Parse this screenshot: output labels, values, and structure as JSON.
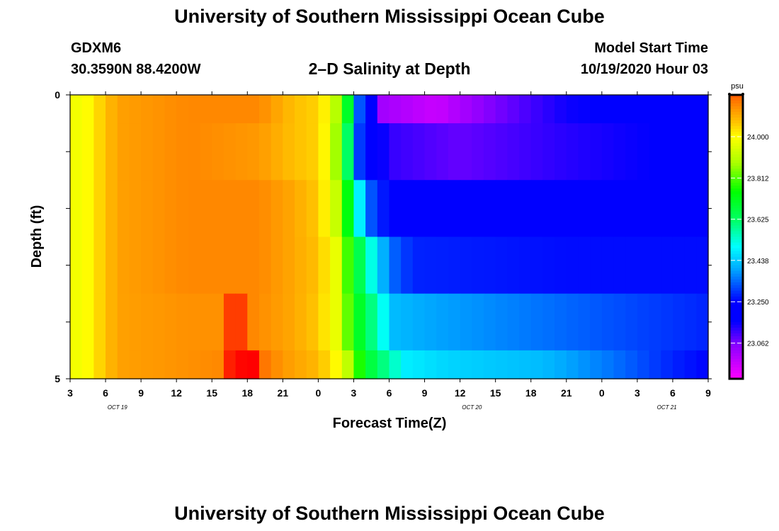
{
  "header": {
    "title": "University of Southern Mississippi Ocean Cube",
    "station": "GDXM6",
    "coords": "30.3590N 88.4200W",
    "plot_title": "2–D Salinity at Depth",
    "model_start_label": "Model Start Time",
    "model_start_value": "10/19/2020 Hour 03"
  },
  "footer": {
    "title": "University of Southern Mississippi Ocean Cube"
  },
  "chart_data": {
    "type": "heatmap",
    "title": "2–D Salinity at Depth",
    "xlabel": "Forecast Time(Z)",
    "ylabel": "Depth (ft)",
    "ylim": [
      0,
      5
    ],
    "y_tick_labels": [
      "0",
      "5"
    ],
    "x_tick_labels": [
      "3",
      "6",
      "9",
      "12",
      "15",
      "18",
      "21",
      "0",
      "3",
      "6",
      "9",
      "12",
      "15",
      "18",
      "21",
      "0",
      "3",
      "6",
      "9"
    ],
    "date_labels": [
      {
        "text": "OCT 19",
        "hour_index": 4
      },
      {
        "text": "OCT 20",
        "hour_index": 34
      },
      {
        "text": "OCT 21",
        "hour_index": 50.5
      }
    ],
    "forecast_hours": 54,
    "depth_layers": [
      0.5,
      1.5,
      2.5,
      3.5,
      4.5
    ],
    "layer_keys": [
      [
        [
          0,
          23.98
        ],
        [
          1.2,
          23.99
        ],
        [
          4,
          24.11
        ],
        [
          10,
          24.14
        ],
        [
          16,
          24.14
        ],
        [
          19,
          24.07
        ],
        [
          21,
          24.05
        ],
        [
          22,
          23.98
        ],
        [
          22.8,
          23.85
        ],
        [
          23.5,
          23.7
        ],
        [
          24.3,
          23.35
        ],
        [
          25.5,
          23.2
        ],
        [
          26.5,
          23.02
        ],
        [
          31,
          22.97
        ],
        [
          35,
          23.05
        ],
        [
          42,
          23.15
        ],
        [
          54,
          23.2
        ]
      ],
      [
        [
          0,
          23.98
        ],
        [
          1.2,
          23.99
        ],
        [
          4,
          24.11
        ],
        [
          10,
          24.14
        ],
        [
          16,
          24.12
        ],
        [
          19,
          24.07
        ],
        [
          21,
          24.05
        ],
        [
          22.2,
          23.95
        ],
        [
          23,
          23.75
        ],
        [
          24,
          23.5
        ],
        [
          24.5,
          23.3
        ],
        [
          25.5,
          23.22
        ],
        [
          27,
          23.12
        ],
        [
          33,
          23.08
        ],
        [
          42,
          23.13
        ],
        [
          54,
          23.18
        ]
      ],
      [
        [
          0,
          23.98
        ],
        [
          1.2,
          23.99
        ],
        [
          4,
          24.11
        ],
        [
          10,
          24.14
        ],
        [
          16,
          24.14
        ],
        [
          19,
          24.1
        ],
        [
          21,
          24.06
        ],
        [
          22.3,
          23.95
        ],
        [
          23,
          23.85
        ],
        [
          24,
          23.62
        ],
        [
          25,
          23.35
        ],
        [
          26.5,
          23.27
        ],
        [
          29,
          23.22
        ],
        [
          40,
          23.21
        ],
        [
          54,
          23.22
        ]
      ],
      [
        [
          0,
          23.98
        ],
        [
          1.2,
          23.99
        ],
        [
          4,
          24.11
        ],
        [
          10,
          24.14
        ],
        [
          16,
          24.14
        ],
        [
          19,
          24.1
        ],
        [
          21,
          24.07
        ],
        [
          22.5,
          23.97
        ],
        [
          23.5,
          23.8
        ],
        [
          24.5,
          23.65
        ],
        [
          25.5,
          23.52
        ],
        [
          27,
          23.35
        ],
        [
          29,
          23.28
        ],
        [
          42,
          23.26
        ],
        [
          54,
          23.26
        ]
      ],
      [
        [
          0,
          23.98
        ],
        [
          1.2,
          23.99
        ],
        [
          4,
          24.11
        ],
        [
          10,
          24.13
        ],
        [
          13,
          24.13
        ],
        [
          13.3,
          24.2
        ],
        [
          14.5,
          24.2
        ],
        [
          15.5,
          24.14
        ],
        [
          19,
          24.1
        ],
        [
          21,
          24.06
        ],
        [
          22.5,
          23.97
        ],
        [
          24,
          23.75
        ],
        [
          26,
          23.55
        ],
        [
          27.5,
          23.42
        ],
        [
          30,
          23.4
        ],
        [
          40,
          23.35
        ],
        [
          50,
          23.3
        ],
        [
          54,
          23.28
        ]
      ],
      [
        [
          0,
          23.98
        ],
        [
          1.2,
          23.99
        ],
        [
          4,
          24.11
        ],
        [
          10,
          24.13
        ],
        [
          12.8,
          24.14
        ],
        [
          13.1,
          24.21
        ],
        [
          15.5,
          24.24
        ],
        [
          16.5,
          24.16
        ],
        [
          18,
          24.12
        ],
        [
          21,
          24.08
        ],
        [
          23,
          23.98
        ],
        [
          25,
          23.7
        ],
        [
          26.5,
          23.6
        ],
        [
          28.5,
          23.48
        ],
        [
          32,
          23.45
        ],
        [
          40,
          23.42
        ],
        [
          46,
          23.35
        ],
        [
          51,
          23.28
        ],
        [
          54,
          23.25
        ]
      ]
    ],
    "colorbar": {
      "unit": "psu",
      "min": 22.9,
      "max": 24.19,
      "ticks": [
        24.0,
        23.812,
        23.625,
        23.438,
        23.25,
        23.062
      ],
      "tick_labels": [
        "24.000",
        "23.812",
        "23.625",
        "23.438",
        "23.250",
        "23.062"
      ],
      "stops": [
        [
          22.9,
          "#ff00ff"
        ],
        [
          23.05,
          "#8c00ff"
        ],
        [
          23.16,
          "#0000ff"
        ],
        [
          23.25,
          "#0000ff"
        ],
        [
          23.4,
          "#00aaff"
        ],
        [
          23.5,
          "#00ffff"
        ],
        [
          23.62,
          "#00ff66"
        ],
        [
          23.75,
          "#00ff00"
        ],
        [
          23.88,
          "#aaff00"
        ],
        [
          24.0,
          "#ffff00"
        ],
        [
          24.06,
          "#ffc800"
        ],
        [
          24.12,
          "#ff9900"
        ],
        [
          24.18,
          "#ff6600"
        ],
        [
          24.23,
          "#ff0000"
        ]
      ]
    },
    "colors": {
      "frame": "#000000",
      "background": "#ffffff"
    }
  }
}
